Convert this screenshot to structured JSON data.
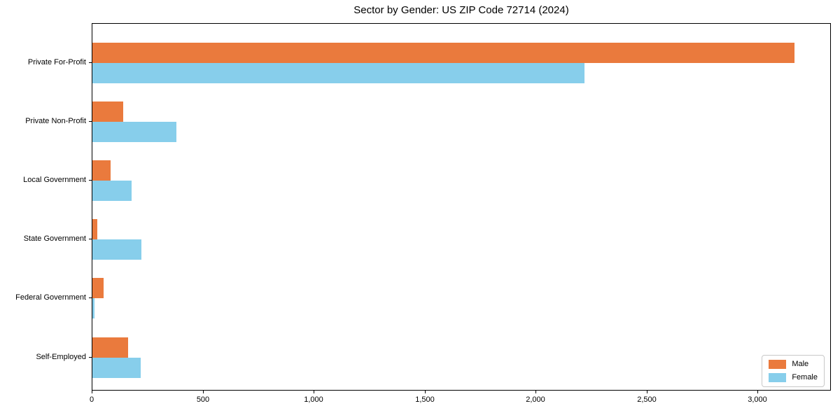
{
  "chart_data": {
    "type": "bar",
    "orientation": "horizontal",
    "title": "Sector by Gender: US ZIP Code 72714 (2024)",
    "categories": [
      "Private For-Profit",
      "Private Non-Profit",
      "Local Government",
      "State Government",
      "Federal Government",
      "Self-Employed"
    ],
    "series": [
      {
        "name": "Male",
        "color": "#ea7a3d",
        "values": [
          3164,
          139,
          81,
          21,
          50,
          162
        ]
      },
      {
        "name": "Female",
        "color": "#87ceeb",
        "values": [
          2218,
          378,
          176,
          220,
          10,
          217
        ]
      }
    ],
    "xlabel": "",
    "ylabel": "",
    "xlim": [
      0,
      3330
    ],
    "xticks": [
      0,
      500,
      1000,
      1500,
      2000,
      2500,
      3000
    ],
    "xtick_labels": [
      "0",
      "500",
      "1,000",
      "1,500",
      "2,000",
      "2,500",
      "3,000"
    ],
    "grid": false,
    "legend_position": "lower right",
    "axis_color": "#000000",
    "background_color": "#ffffff"
  },
  "legend": {
    "items": [
      {
        "label": "Male",
        "color": "#ea7a3d"
      },
      {
        "label": "Female",
        "color": "#87ceeb"
      }
    ]
  }
}
